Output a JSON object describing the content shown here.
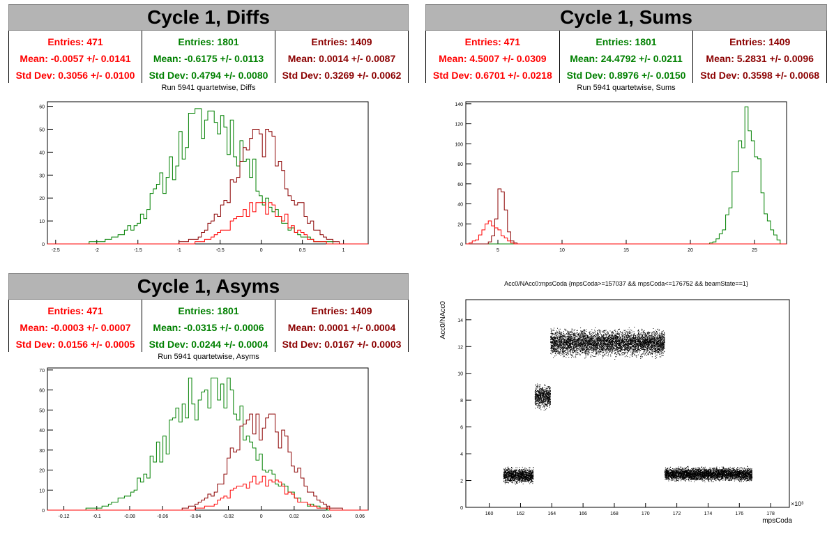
{
  "colors": {
    "red": "#ff0000",
    "green": "#008000",
    "darkred": "#8b0000",
    "title_bg": "#b4b4b4"
  },
  "diffs": {
    "title": "Cycle 1, Diffs",
    "subtitle": "Run 5941 quartetwise, Diffs",
    "stats": [
      {
        "entries": "Entries: 471",
        "mean": "Mean: -0.0057 +/- 0.0141",
        "std": "Std Dev: 0.3056 +/- 0.0100",
        "color": "#ff0000"
      },
      {
        "entries": "Entries: 1801",
        "mean": "Mean: -0.6175 +/- 0.0113",
        "std": "Std Dev: 0.4794 +/- 0.0080",
        "color": "#008000"
      },
      {
        "entries": "Entries: 1409",
        "mean": "Mean: 0.0014 +/- 0.0087",
        "std": "Std Dev: 0.3269 +/- 0.0062",
        "color": "#8b0000"
      }
    ]
  },
  "sums": {
    "title": "Cycle 1, Sums",
    "subtitle": "Run 5941 quartetwise, Sums",
    "stats": [
      {
        "entries": "Entries: 471",
        "mean": "Mean: 4.5007 +/- 0.0309",
        "std": "Std Dev: 0.6701 +/- 0.0218",
        "color": "#ff0000"
      },
      {
        "entries": "Entries: 1801",
        "mean": "Mean: 24.4792 +/- 0.0211",
        "std": "Std Dev: 0.8976 +/- 0.0150",
        "color": "#008000"
      },
      {
        "entries": "Entries: 1409",
        "mean": "Mean: 5.2831 +/- 0.0096",
        "std": "Std Dev: 0.3598 +/- 0.0068",
        "color": "#8b0000"
      }
    ]
  },
  "asyms": {
    "title": "Cycle 1, Asyms",
    "subtitle": "Run 5941 quartetwise, Asyms",
    "stats": [
      {
        "entries": "Entries: 471",
        "mean": "Mean: -0.0003 +/- 0.0007",
        "std": "Std Dev: 0.0156 +/- 0.0005",
        "color": "#ff0000"
      },
      {
        "entries": "Entries: 1801",
        "mean": "Mean: -0.0315 +/- 0.0006",
        "std": "Std Dev: 0.0244 +/- 0.0004",
        "color": "#008000"
      },
      {
        "entries": "Entries: 1409",
        "mean": "Mean: 0.0001 +/- 0.0004",
        "std": "Std Dev: 0.0167 +/- 0.0003",
        "color": "#8b0000"
      }
    ]
  },
  "scatter": {
    "title": "Acc0/NAcc0:mpsCoda {mpsCoda>=157037 && mpsCoda<=176752 && beamState==1}",
    "ylabel": "Acc0/NAcc0",
    "xlabel": "mpsCoda",
    "exponent": "×10³"
  },
  "chart_data": [
    {
      "type": "histogram",
      "name": "diffs",
      "xlim": [
        -2.6,
        1.3
      ],
      "ylim": [
        0,
        62
      ],
      "xticks": [
        -2.5,
        -2,
        -1.5,
        -1,
        -0.5,
        0,
        0.5,
        1
      ],
      "yticks": [
        0,
        10,
        20,
        30,
        40,
        50,
        60
      ],
      "series": [
        {
          "color": "#008000",
          "mean": -0.6175,
          "std": 0.4794,
          "peak": 59,
          "range": [
            -2.5,
            0.9
          ]
        },
        {
          "color": "#8b0000",
          "mean": 0.0014,
          "std": 0.3269,
          "peak": 50,
          "range": [
            -1.0,
            1.0
          ]
        },
        {
          "color": "#ff0000",
          "mean": -0.0057,
          "std": 0.3056,
          "peak": 18,
          "range": [
            -1.0,
            1.0
          ]
        }
      ]
    },
    {
      "type": "histogram",
      "name": "sums",
      "xlim": [
        2.5,
        27.5
      ],
      "ylim": [
        0,
        142
      ],
      "xticks": [
        5,
        10,
        15,
        20,
        25
      ],
      "yticks": [
        0,
        20,
        40,
        60,
        80,
        100,
        120,
        140
      ],
      "series": [
        {
          "color": "#008000",
          "mean": 24.4792,
          "std": 0.8976,
          "peak": 137,
          "range": [
            21,
            27
          ]
        },
        {
          "color": "#8b0000",
          "mean": 5.2831,
          "std": 0.3598,
          "peak": 55,
          "range": [
            3.5,
            7
          ]
        },
        {
          "color": "#ff0000",
          "mean": 4.5007,
          "std": 0.6701,
          "peak": 23,
          "range": [
            2.7,
            6.5
          ]
        }
      ]
    },
    {
      "type": "histogram",
      "name": "asyms",
      "xlim": [
        -0.13,
        0.065
      ],
      "ylim": [
        0,
        71
      ],
      "xticks": [
        -0.12,
        -0.1,
        -0.08,
        -0.06,
        -0.04,
        -0.02,
        0,
        0.02,
        0.04,
        0.06
      ],
      "yticks": [
        0,
        10,
        20,
        30,
        40,
        50,
        60,
        70
      ],
      "series": [
        {
          "color": "#008000",
          "mean": -0.0315,
          "std": 0.0244,
          "peak": 66,
          "range": [
            -0.12,
            0.04
          ]
        },
        {
          "color": "#8b0000",
          "mean": 0.0001,
          "std": 0.0167,
          "peak": 48,
          "range": [
            -0.05,
            0.05
          ]
        },
        {
          "color": "#ff0000",
          "mean": -0.0003,
          "std": 0.0156,
          "peak": 17,
          "range": [
            -0.05,
            0.05
          ]
        }
      ]
    },
    {
      "type": "scatter",
      "name": "acc0_vs_mpscoda",
      "xlim": [
        158.5,
        179.2
      ],
      "ylim": [
        0,
        15.5
      ],
      "xticks": [
        160,
        162,
        164,
        166,
        168,
        170,
        172,
        174,
        176,
        178
      ],
      "yticks": [
        0,
        2,
        4,
        6,
        8,
        10,
        12,
        14
      ],
      "clusters": [
        {
          "x": [
            160.9,
            162.8
          ],
          "y_mean": 2.4,
          "y_spread": 0.45
        },
        {
          "x": [
            162.9,
            163.9
          ],
          "y_mean": 8.3,
          "y_spread": 0.7
        },
        {
          "x": [
            163.9,
            171.2
          ],
          "y_mean": 12.3,
          "y_spread": 0.8
        },
        {
          "x": [
            171.2,
            176.8
          ],
          "y_mean": 2.5,
          "y_spread": 0.4
        }
      ]
    }
  ]
}
